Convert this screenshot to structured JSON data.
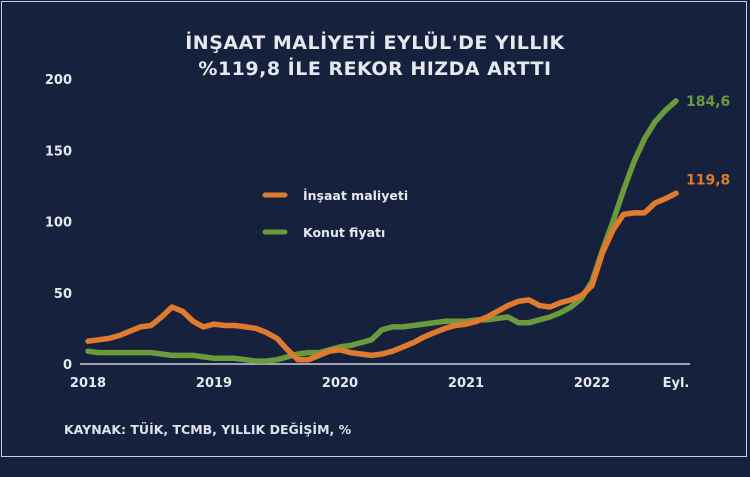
{
  "chart_data": {
    "type": "line",
    "title_line1": "İNŞAAT MALİYETİ EYLÜL'DE YILLIK",
    "title_line2": "%119,8 İLE REKOR HIZDA ARTTI",
    "source": "KAYNAK: TÜİK, TCMB, YILLIK DEĞİŞİM, %",
    "x_start": "2018-01",
    "x_end": "2022-09",
    "x_ticks": [
      "2018",
      "2019",
      "2020",
      "2021",
      "2022",
      "Eyl."
    ],
    "y_ticks": [
      "0",
      "50",
      "100",
      "150",
      "200"
    ],
    "ylim": [
      0,
      200
    ],
    "series": [
      {
        "name": "İnşaat maliyeti",
        "color": "#e07a2e",
        "end_label": "119,8",
        "values": [
          16,
          17,
          18,
          20,
          23,
          26,
          27,
          33,
          40,
          37,
          30,
          26,
          28,
          27,
          27,
          26,
          25,
          22,
          18,
          10,
          3,
          3,
          6,
          9,
          10,
          8,
          7,
          6,
          7,
          9,
          12,
          15,
          19,
          22,
          25,
          27,
          28,
          30,
          33,
          37,
          41,
          44,
          45,
          41,
          40,
          43,
          45,
          48,
          55,
          78,
          94,
          105,
          106,
          106,
          113,
          116,
          119.8
        ]
      },
      {
        "name": "Konut fiyatı",
        "color": "#6a9a3c",
        "end_label": "184,6",
        "values": [
          9,
          8,
          8,
          8,
          8,
          8,
          8,
          7,
          6,
          6,
          6,
          5,
          4,
          4,
          4,
          3,
          2,
          2,
          3,
          5,
          7,
          8,
          8,
          10,
          12,
          13,
          15,
          17,
          24,
          26,
          26,
          27,
          28,
          29,
          30,
          30,
          30,
          31,
          31,
          32,
          33,
          29,
          29,
          31,
          33,
          36,
          40,
          46,
          58,
          80,
          100,
          122,
          142,
          158,
          170,
          178,
          184.6
        ]
      }
    ]
  }
}
